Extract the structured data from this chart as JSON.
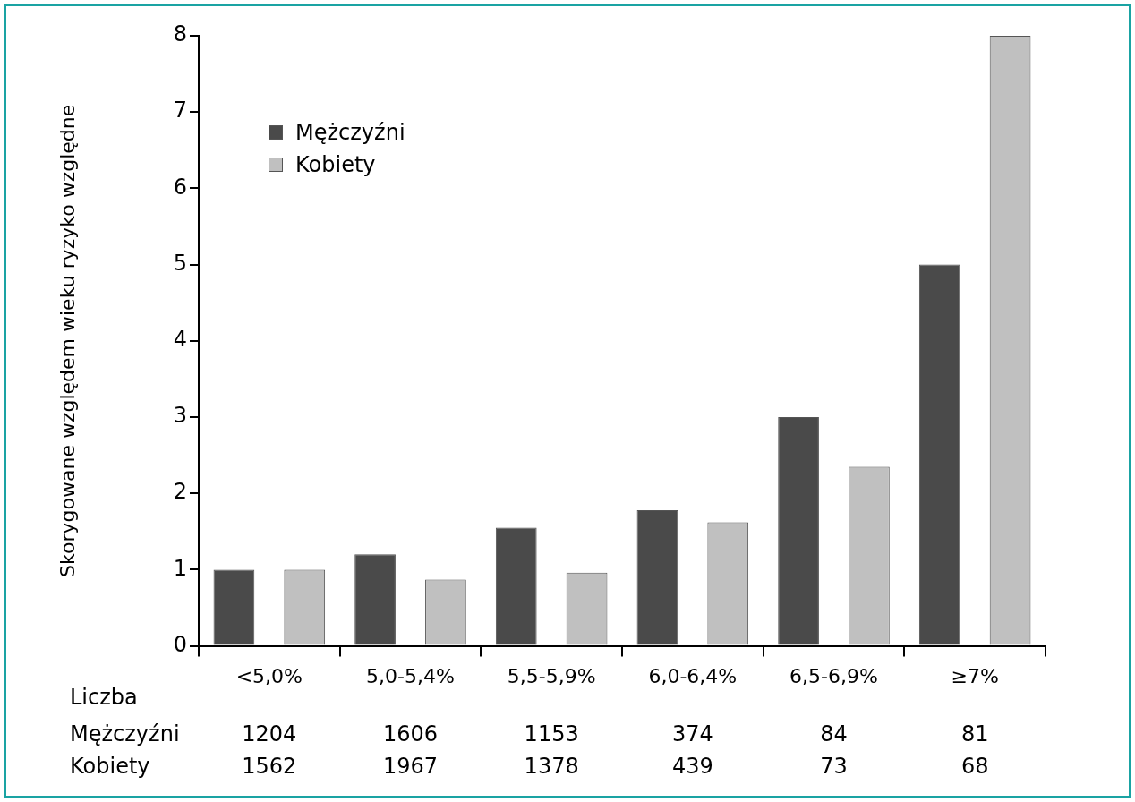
{
  "chart_data": {
    "type": "bar",
    "ylabel": "Skorygowane względem wieku ryzyko względne",
    "categories": [
      "<5,0%",
      "5,0-5,4%",
      "5,5-5,9%",
      "6,0-6,4%",
      "6,5-6,9%",
      "≥7%"
    ],
    "series": [
      {
        "name": "Mężczyźni",
        "color": "#4a4a4a",
        "values": [
          1.0,
          1.2,
          1.55,
          1.78,
          3.0,
          5.0
        ]
      },
      {
        "name": "Kobiety",
        "color": "#c0c0c0",
        "values": [
          1.0,
          0.87,
          0.96,
          1.62,
          2.35,
          8.0
        ]
      }
    ],
    "ylim": [
      0,
      8
    ],
    "yticks": [
      0,
      1,
      2,
      3,
      4,
      5,
      6,
      7,
      8
    ],
    "grid": false,
    "legend": "top left",
    "annotations": [
      "Liczba",
      "Mężczyźni",
      "1204",
      "1606",
      "1153",
      "374",
      "84",
      "81",
      "Kobiety",
      "1562",
      "1967",
      "1378",
      "439",
      "73",
      "68"
    ]
  }
}
